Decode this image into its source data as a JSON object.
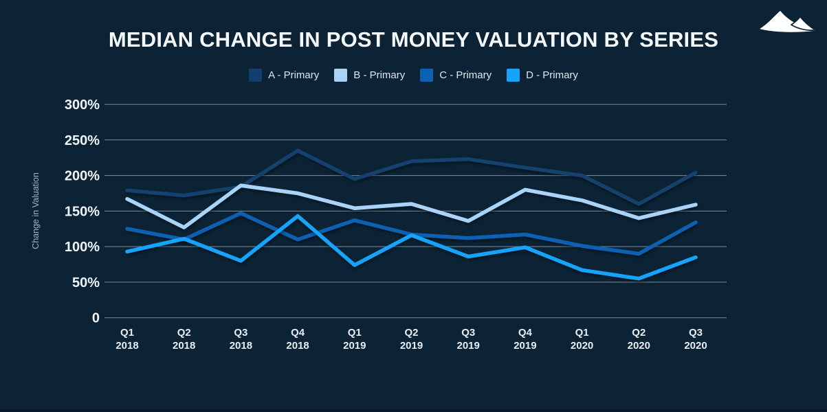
{
  "page": {
    "background": "#0b2335"
  },
  "header": {
    "logo_icon": "dune-mountains-logo"
  },
  "chart_data": {
    "type": "line",
    "title": "MEDIAN CHANGE IN POST MONEY VALUATION BY SERIES",
    "xlabel": "",
    "ylabel": "Change in Valuation",
    "unit": "%",
    "ylim": [
      0,
      300
    ],
    "yticks": [
      300,
      250,
      200,
      150,
      100,
      50,
      0
    ],
    "ytick_labels": [
      "300%",
      "250%",
      "200%",
      "150%",
      "100%",
      "50%",
      "0"
    ],
    "grid": "horizontal",
    "legend_position": "top",
    "categories": [
      "Q1 2018",
      "Q2 2018",
      "Q3 2018",
      "Q4 2018",
      "Q1 2019",
      "Q2 2019",
      "Q3 2019",
      "Q4 2019",
      "Q1 2020",
      "Q2 2020",
      "Q3 2020"
    ],
    "series": [
      {
        "name": "A - Primary",
        "color": "#123f6d",
        "values": [
          179,
          172,
          184,
          235,
          195,
          220,
          223,
          211,
          200,
          160,
          204
        ]
      },
      {
        "name": "B - Primary",
        "color": "#a9d4f7",
        "values": [
          167,
          127,
          186,
          175,
          154,
          160,
          136,
          180,
          165,
          140,
          159
        ]
      },
      {
        "name": "C - Primary",
        "color": "#0d61b2",
        "values": [
          125,
          110,
          147,
          110,
          137,
          117,
          112,
          117,
          101,
          90,
          134
        ]
      },
      {
        "name": "D - Primary",
        "color": "#16a3fc",
        "values": [
          93,
          111,
          80,
          143,
          74,
          116,
          86,
          99,
          67,
          55,
          85
        ]
      }
    ],
    "styles": {
      "grid_color": "#bcc6cd",
      "grid_opacity": 0.65,
      "ytick_color": "#eff4f8",
      "xtick_color": "#e6edf3",
      "ylabel_color": "#a3b3bf",
      "line_width": 5.5
    }
  }
}
